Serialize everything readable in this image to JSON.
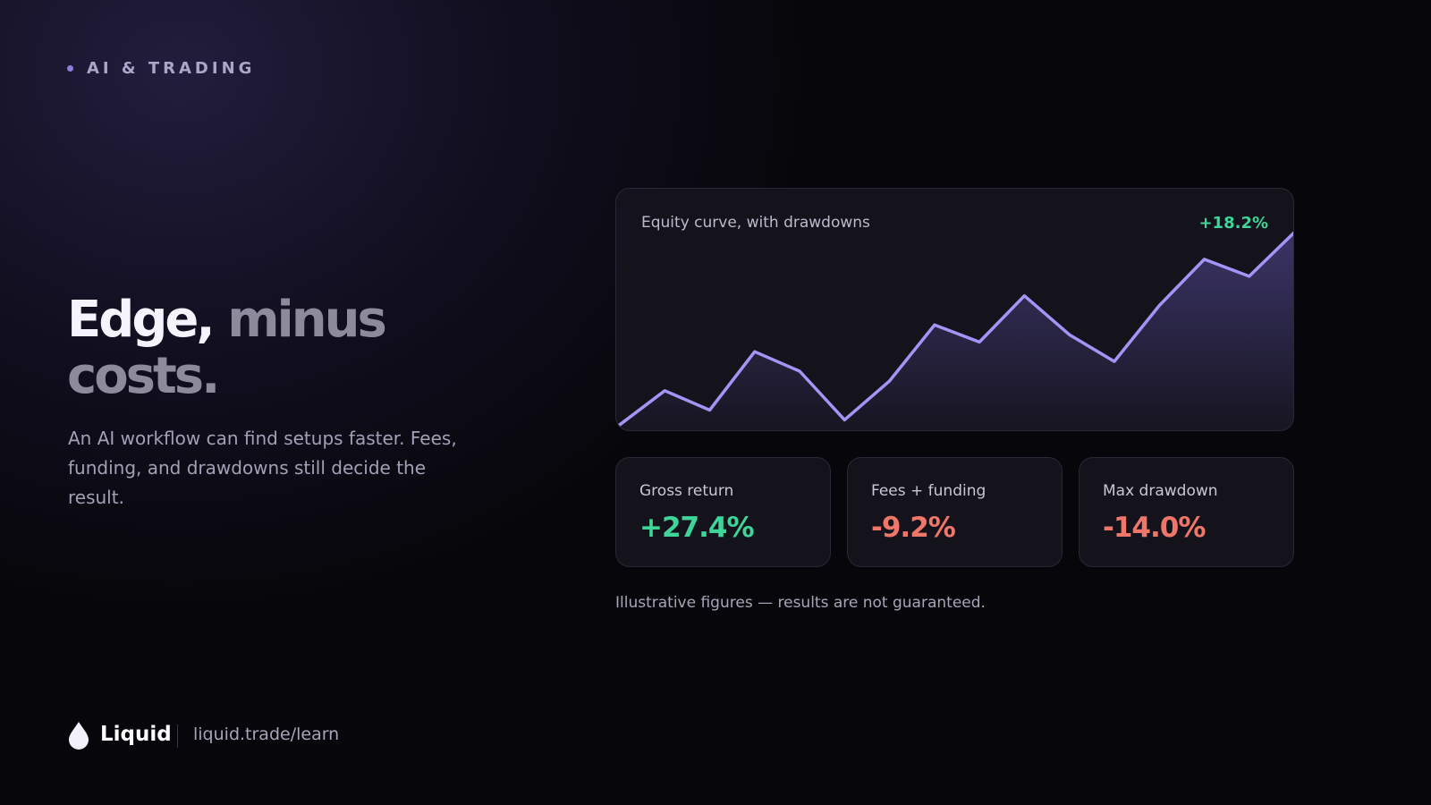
{
  "eyebrow": "AI & TRADING",
  "heading": {
    "strong": "Edge,",
    "muted": "minus costs."
  },
  "body": "An AI workflow can find setups faster. Fees, funding, and drawdowns still decide the result.",
  "chart_data": {
    "type": "area",
    "title": "Equity curve, with drawdowns",
    "annotation": "+18.2%",
    "values": [
      3,
      17,
      9,
      33,
      25,
      5,
      21,
      44,
      37,
      56,
      40,
      29,
      52,
      71,
      64,
      82
    ],
    "ylim": [
      0,
      100
    ],
    "color": "#a394f5"
  },
  "stats": [
    {
      "label": "Gross return",
      "value": "+27.4%"
    },
    {
      "label": "Fees + funding",
      "value": "-9.2%"
    },
    {
      "label": "Max drawdown",
      "value": "-14.0%"
    }
  ],
  "note": "Illustrative figures — results are not guaranteed.",
  "footer": {
    "brand": "Liquid",
    "url": "liquid.trade/learn"
  }
}
